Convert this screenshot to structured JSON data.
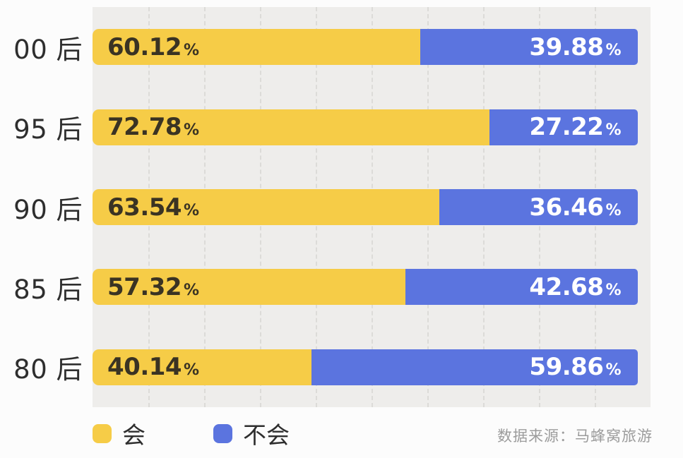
{
  "chart_data": {
    "type": "bar",
    "orientation": "horizontal",
    "stacked": true,
    "unit": "%",
    "categories": [
      "00 后",
      "95 后",
      "90 后",
      "85 后",
      "80 后"
    ],
    "series": [
      {
        "name": "会",
        "color": "#F6CC47",
        "values": [
          60.12,
          72.78,
          63.54,
          57.32,
          40.14
        ]
      },
      {
        "name": "不会",
        "color": "#5B74DF",
        "values": [
          39.88,
          27.22,
          36.46,
          42.68,
          59.86
        ]
      }
    ],
    "xlim": [
      0,
      100
    ],
    "grid": {
      "axis": "x",
      "style": "dashed",
      "interval_pct": 10,
      "color": "#DCDBD8"
    },
    "plot_background": "#EEEDEB",
    "legend_position": "bottom-left",
    "source": "数据来源：马蜂窝旅游"
  }
}
